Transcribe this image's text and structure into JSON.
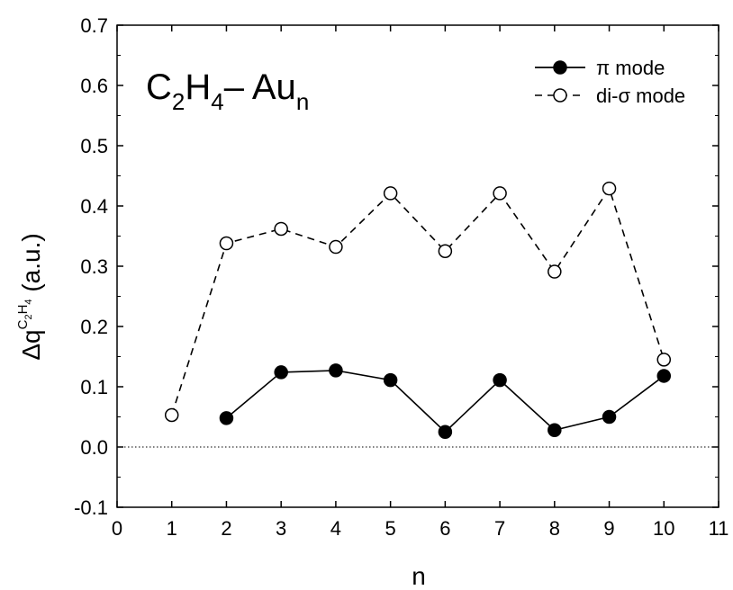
{
  "chart_data": {
    "type": "line",
    "annotation": {
      "main": "C",
      "sub1": "2",
      "mid": "H",
      "sub2": "4",
      "dash": "–",
      "metal": " Au",
      "sub3": "n"
    },
    "xlabel": "n",
    "ylabel": {
      "prefix": "Δq",
      "sup1": "C",
      "sup1sub": "2",
      "sup2": "H",
      "sup2sub": "4",
      "suffix": " (a.u.)"
    },
    "xlim": [
      0,
      11
    ],
    "ylim": [
      -0.1,
      0.7
    ],
    "xticks": [
      "0",
      "1",
      "2",
      "3",
      "4",
      "5",
      "6",
      "7",
      "8",
      "9",
      "10",
      "11"
    ],
    "yticks": [
      "-0.1",
      "0.0",
      "0.1",
      "0.2",
      "0.3",
      "0.4",
      "0.5",
      "0.6",
      "0.7"
    ],
    "reference_line": 0.0,
    "legend_position": "top-right",
    "series": [
      {
        "name": "π mode",
        "marker": "filled-circle",
        "line": "solid",
        "color": "#000000",
        "x": [
          2,
          3,
          4,
          5,
          6,
          7,
          8,
          9,
          10
        ],
        "y": [
          0.048,
          0.124,
          0.127,
          0.111,
          0.025,
          0.111,
          0.028,
          0.05,
          0.118
        ]
      },
      {
        "name": "di-σ mode",
        "marker": "open-circle",
        "line": "dashed",
        "color": "#000000",
        "x": [
          1,
          2,
          3,
          4,
          5,
          6,
          7,
          8,
          9,
          10
        ],
        "y": [
          0.053,
          0.338,
          0.362,
          0.332,
          0.421,
          0.325,
          0.421,
          0.291,
          0.429,
          0.145
        ]
      }
    ]
  }
}
